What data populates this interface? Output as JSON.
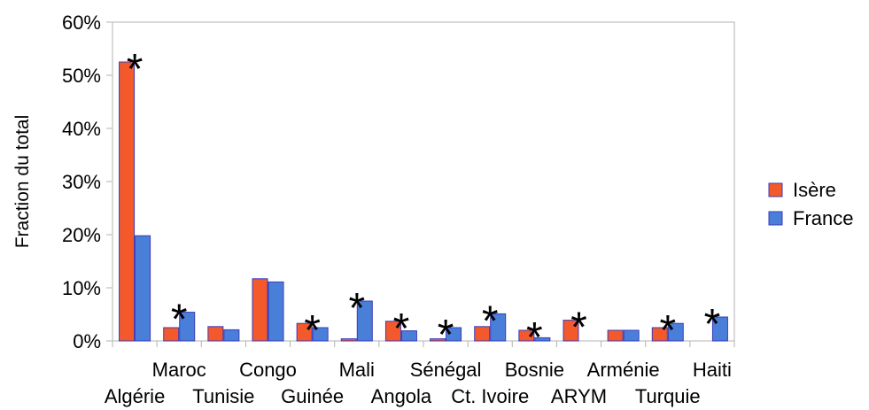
{
  "chart_data": {
    "type": "bar",
    "categories": [
      "Algérie",
      "Maroc",
      "Tunisie",
      "Congo",
      "Guinée",
      "Mali",
      "Angola",
      "Sénégal",
      "Ct. Ivoire",
      "Bosnie",
      "ARYM",
      "Arménie",
      "Turquie",
      "Haiti"
    ],
    "series": [
      {
        "name": "Isère",
        "color": "#f4592c",
        "values": [
          52.5,
          2.5,
          2.7,
          11.7,
          3.3,
          0.4,
          3.7,
          0.4,
          2.7,
          2.0,
          3.9,
          2.0,
          2.5,
          0.0
        ]
      },
      {
        "name": "France",
        "color": "#4a7fd9",
        "values": [
          19.8,
          5.4,
          2.1,
          11.1,
          2.5,
          7.5,
          1.9,
          2.5,
          5.1,
          0.6,
          0.0,
          2.0,
          3.3,
          4.5
        ]
      }
    ],
    "significant": [
      true,
      true,
      false,
      false,
      true,
      true,
      true,
      true,
      true,
      true,
      true,
      false,
      true,
      true
    ],
    "marker": "*",
    "ylabel": "Fraction du total",
    "ylim": [
      0,
      60
    ],
    "yticks": [
      "0%",
      "10%",
      "20%",
      "30%",
      "40%",
      "50%",
      "60%"
    ],
    "legend_position": "right",
    "grid": false
  }
}
